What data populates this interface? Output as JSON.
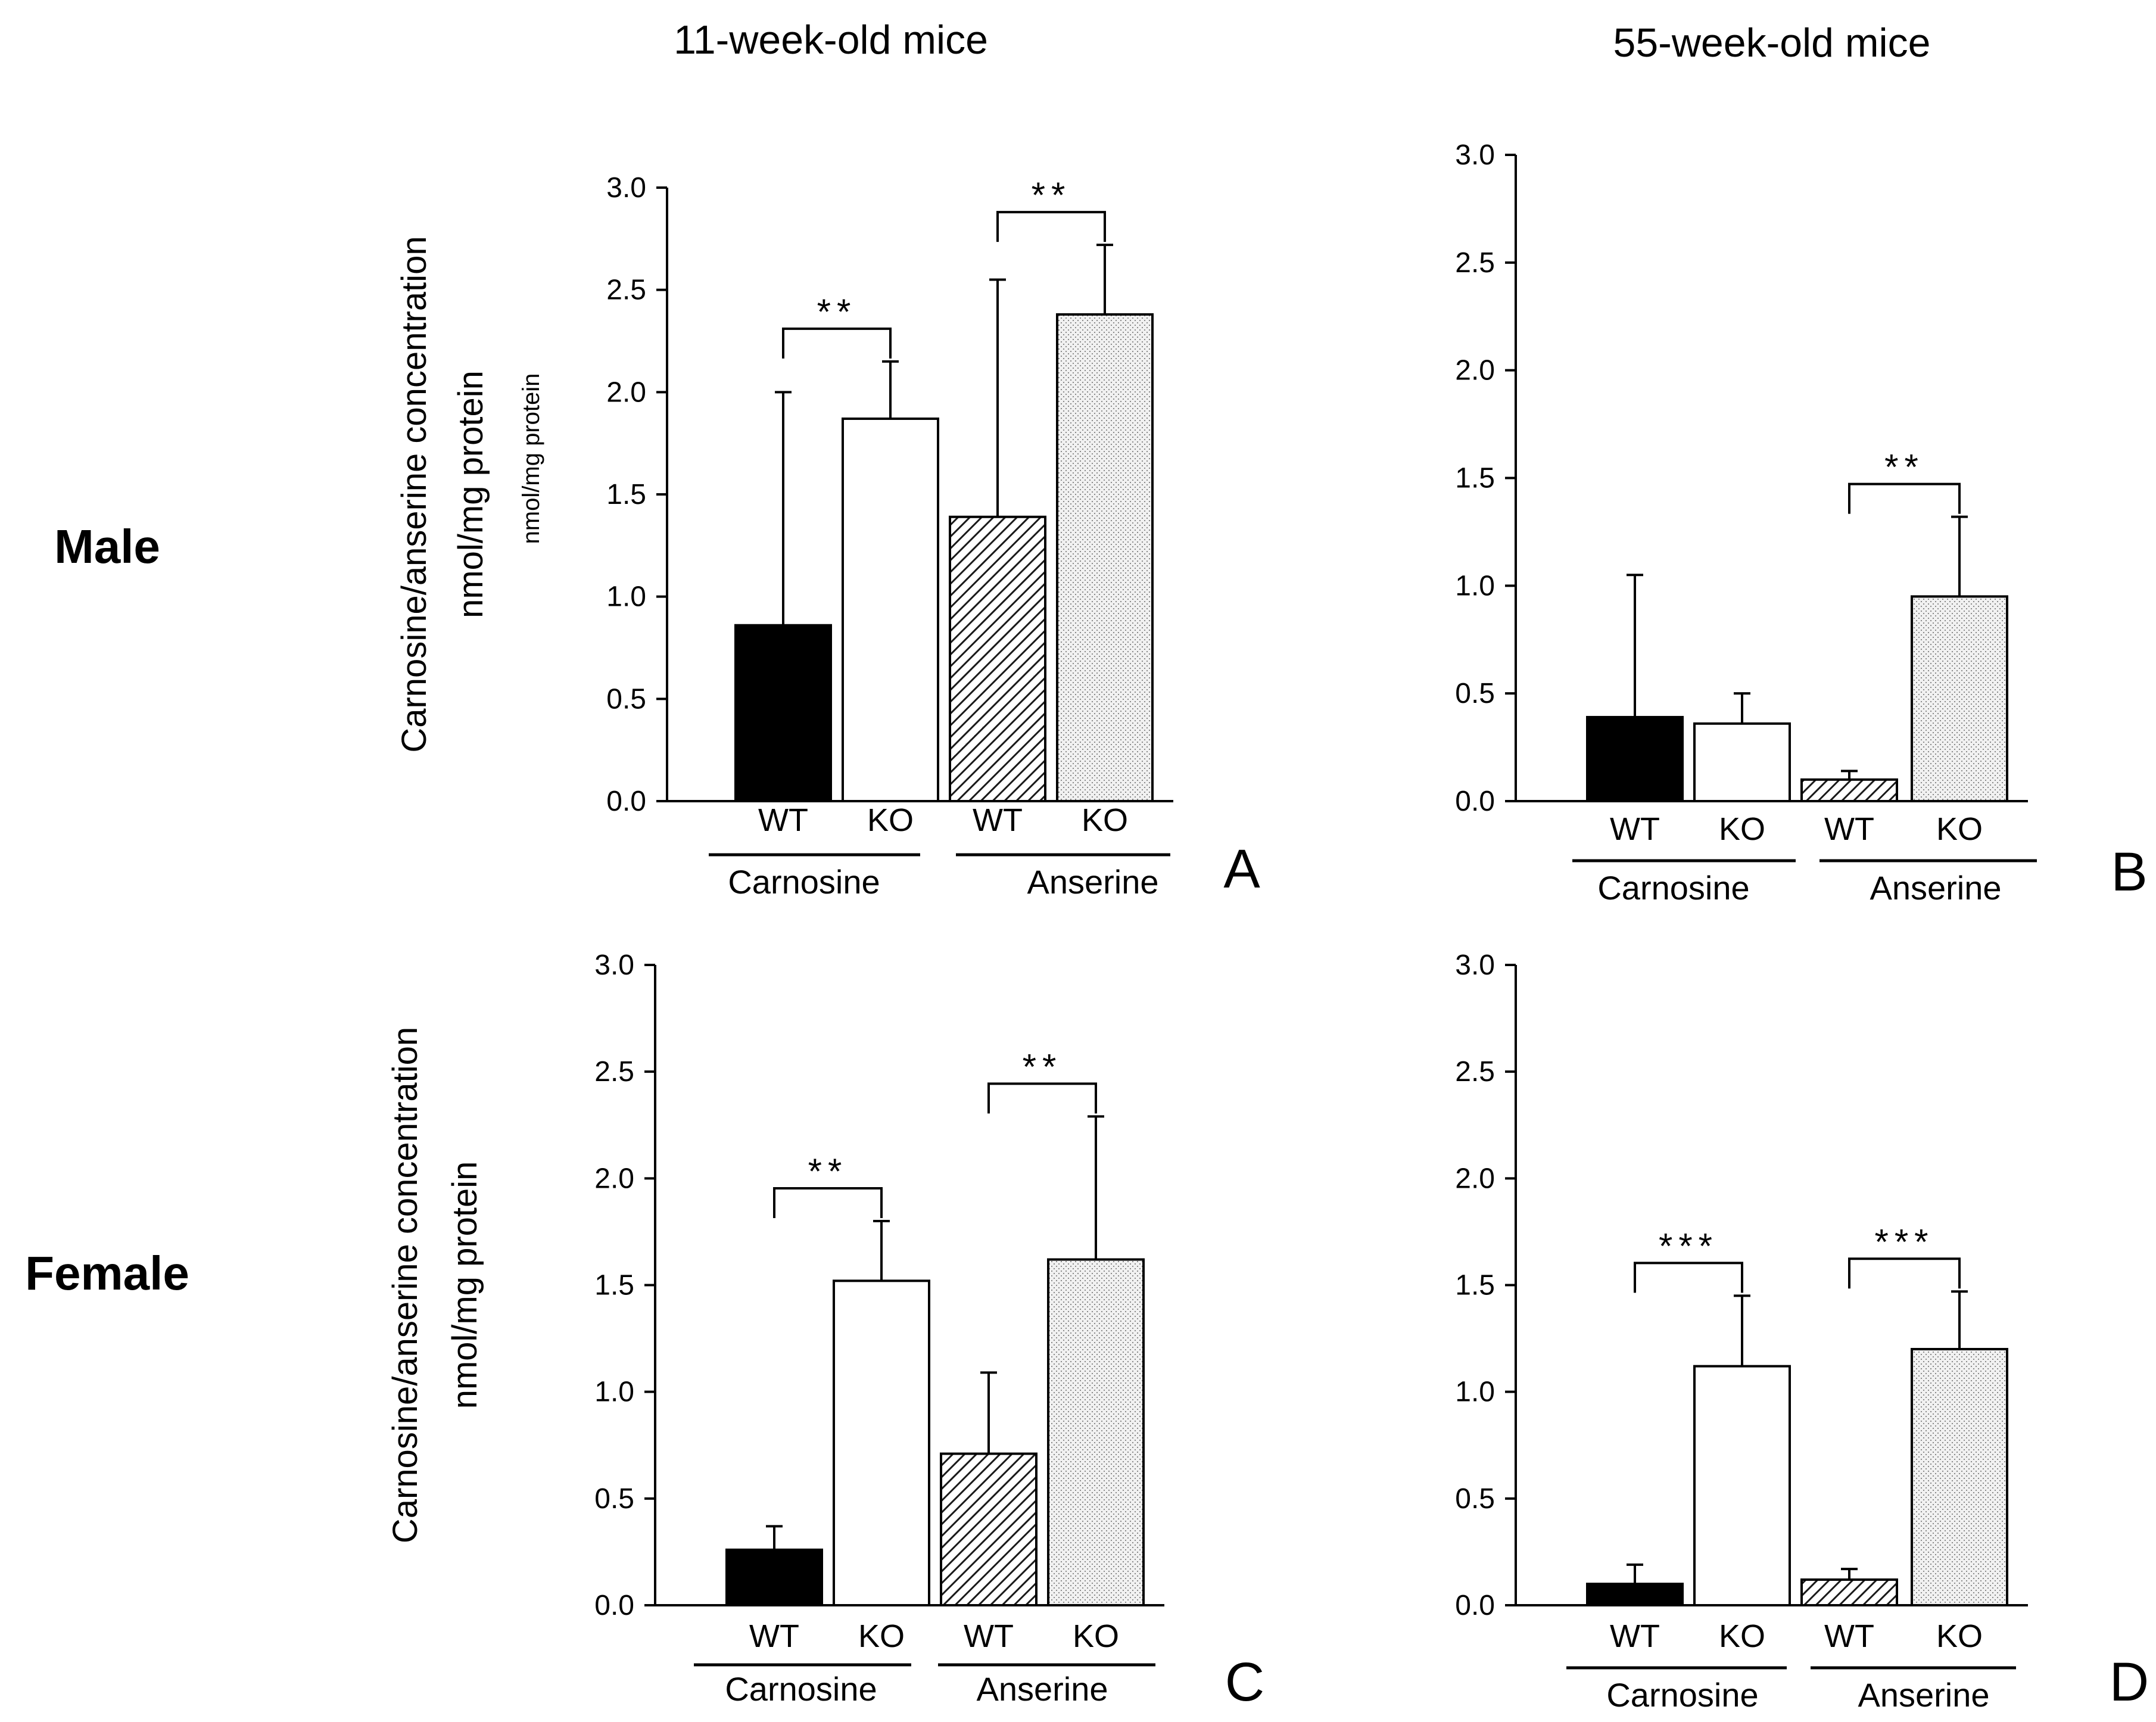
{
  "column_headers": [
    "11-week-old mice",
    "55-week-old mice"
  ],
  "row_labels": [
    "Male",
    "Female"
  ],
  "legend": {
    "fills": {
      "WT-Carnosine": "#000000",
      "KO-Carnosine": "#ffffff",
      "WT-Anserine": "hatched",
      "KO-Anserine": "stippled"
    }
  },
  "chart_data": [
    {
      "id": "A",
      "panel_label": "A",
      "type": "bar",
      "column": "11-week-old mice",
      "row": "Male",
      "ylabel_lines": [
        "Carnosine/anserine concentration",
        "nmol/mg protein"
      ],
      "ylabel_sub": "nmol/mg protein",
      "ylim": [
        0,
        3.0
      ],
      "yticks": [
        "0.0",
        "0.5",
        "1.0",
        "1.5",
        "2.0",
        "2.5",
        "3.0"
      ],
      "groups": [
        {
          "name": "Carnosine",
          "bars": [
            {
              "label": "WT",
              "value": 0.86,
              "error": 1.14,
              "fill": "black"
            },
            {
              "label": "KO",
              "value": 1.87,
              "error": 0.28,
              "fill": "white"
            }
          ],
          "significance": "**"
        },
        {
          "name": "Anserine",
          "bars": [
            {
              "label": "WT",
              "value": 1.39,
              "error": 1.16,
              "fill": "hatched"
            },
            {
              "label": "KO",
              "value": 2.38,
              "error": 0.34,
              "fill": "stippled"
            }
          ],
          "significance": "**"
        }
      ]
    },
    {
      "id": "B",
      "panel_label": "B",
      "type": "bar",
      "column": "55-week-old mice",
      "row": "Male",
      "ylim": [
        0,
        3.0
      ],
      "yticks": [
        "0.0",
        "0.5",
        "1.0",
        "1.5",
        "2.0",
        "2.5",
        "3.0"
      ],
      "groups": [
        {
          "name": "Carnosine",
          "bars": [
            {
              "label": "WT",
              "value": 0.39,
              "error": 0.66,
              "fill": "black"
            },
            {
              "label": "KO",
              "value": 0.36,
              "error": 0.14,
              "fill": "white"
            }
          ],
          "significance": ""
        },
        {
          "name": "Anserine",
          "bars": [
            {
              "label": "WT",
              "value": 0.1,
              "error": 0.04,
              "fill": "hatched"
            },
            {
              "label": "KO",
              "value": 0.95,
              "error": 0.37,
              "fill": "stippled"
            }
          ],
          "significance": "**"
        }
      ]
    },
    {
      "id": "C",
      "panel_label": "C",
      "type": "bar",
      "column": "11-week-old mice",
      "row": "Female",
      "ylabel_lines": [
        "Carnosine/anserine concentration",
        "nmol/mg protein"
      ],
      "ylim": [
        0,
        3.0
      ],
      "yticks": [
        "0.0",
        "0.5",
        "1.0",
        "1.5",
        "2.0",
        "2.5",
        "3.0"
      ],
      "groups": [
        {
          "name": "Carnosine",
          "bars": [
            {
              "label": "WT",
              "value": 0.26,
              "error": 0.11,
              "fill": "black"
            },
            {
              "label": "KO",
              "value": 1.52,
              "error": 0.28,
              "fill": "white"
            }
          ],
          "significance": "**"
        },
        {
          "name": "Anserine",
          "bars": [
            {
              "label": "WT",
              "value": 0.71,
              "error": 0.38,
              "fill": "hatched"
            },
            {
              "label": "KO",
              "value": 1.62,
              "error": 0.67,
              "fill": "stippled"
            }
          ],
          "significance": "**"
        }
      ]
    },
    {
      "id": "D",
      "panel_label": "D",
      "type": "bar",
      "column": "55-week-old mice",
      "row": "Female",
      "ylim": [
        0,
        3.0
      ],
      "yticks": [
        "0.0",
        "0.5",
        "1.0",
        "1.5",
        "2.0",
        "2.5",
        "3.0"
      ],
      "groups": [
        {
          "name": "Carnosine",
          "bars": [
            {
              "label": "WT",
              "value": 0.1,
              "error": 0.09,
              "fill": "black"
            },
            {
              "label": "KO",
              "value": 1.12,
              "error": 0.33,
              "fill": "white"
            }
          ],
          "significance": "***"
        },
        {
          "name": "Anserine",
          "bars": [
            {
              "label": "WT",
              "value": 0.12,
              "error": 0.05,
              "fill": "hatched"
            },
            {
              "label": "KO",
              "value": 1.2,
              "error": 0.27,
              "fill": "stippled"
            }
          ],
          "significance": "***"
        }
      ]
    }
  ]
}
